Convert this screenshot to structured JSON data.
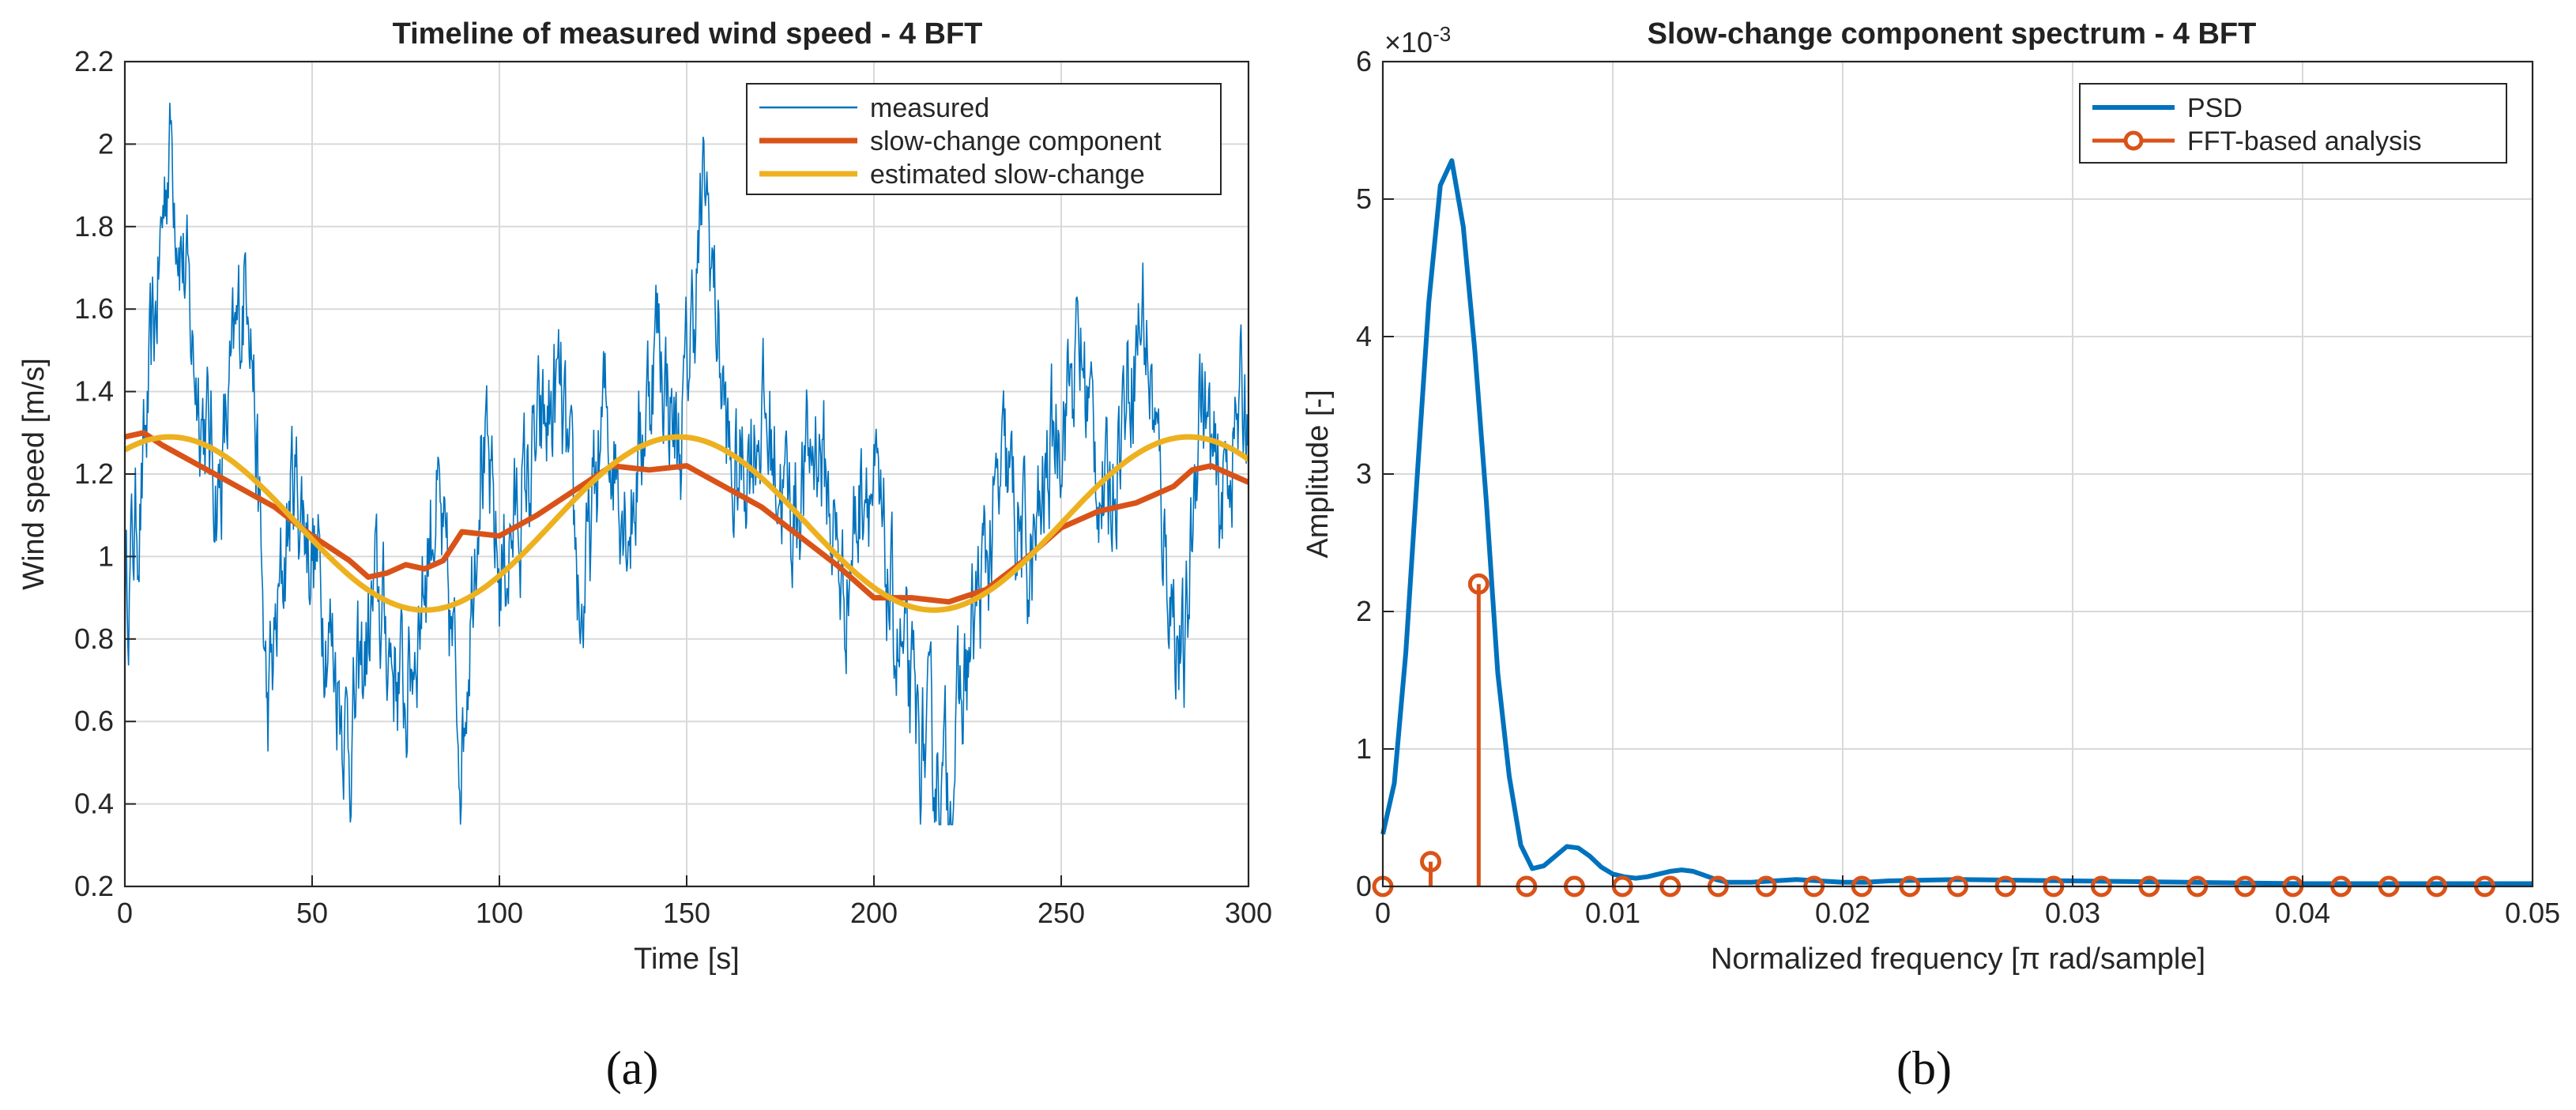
{
  "chart_data": [
    {
      "type": "line",
      "title": "Timeline of measured wind speed - 4 BFT",
      "xlabel": "Time [s]",
      "ylabel": "Wind speed [m/s]",
      "xlim": [
        0,
        300
      ],
      "ylim": [
        0.2,
        2.2
      ],
      "xticks": [
        0,
        50,
        100,
        150,
        200,
        250,
        300
      ],
      "xtick_labels": [
        "0",
        "50",
        "100",
        "150",
        "200",
        "250",
        "300"
      ],
      "yticks": [
        0.2,
        0.4,
        0.6,
        0.8,
        1,
        1.2,
        1.4,
        1.6,
        1.8,
        2,
        2.2
      ],
      "ytick_labels": [
        "0.2",
        "0.4",
        "0.6",
        "0.8",
        "1",
        "1.2",
        "1.4",
        "1.6",
        "1.8",
        "2",
        "2.2"
      ],
      "grid": true,
      "legend_position": "top-right",
      "panel_label": "(a)",
      "series": [
        {
          "name": "measured",
          "color": "#0072BD",
          "x": [
            0,
            5,
            12,
            18,
            25,
            33,
            38,
            45,
            52,
            60,
            67,
            75,
            83,
            90,
            95,
            100,
            108,
            116,
            122,
            128,
            135,
            142,
            148,
            155,
            162,
            170,
            178,
            185,
            192,
            198,
            205,
            212,
            220,
            228,
            235,
            242,
            248,
            255,
            262,
            268,
            272,
            278,
            283,
            287,
            292,
            296,
            300
          ],
          "y": [
            0.9,
            1.2,
            2.05,
            1.5,
            1.15,
            1.75,
            0.6,
            1.2,
            0.95,
            0.55,
            0.9,
            0.65,
            1.15,
            0.55,
            1.3,
            0.95,
            1.2,
            1.4,
            0.85,
            1.35,
            1.1,
            1.55,
            1.25,
            1.9,
            1.15,
            1.35,
            1.1,
            1.3,
            0.9,
            1.25,
            0.85,
            0.55,
            0.45,
            0.9,
            1.2,
            0.95,
            1.3,
            1.5,
            1.1,
            1.45,
            1.6,
            1.0,
            0.7,
            1.45,
            1.1,
            1.3,
            1.4
          ]
        },
        {
          "name": "slow-change component",
          "color": "#D95319",
          "x": [
            0,
            5,
            10,
            20,
            30,
            40,
            50,
            60,
            65,
            70,
            75,
            80,
            85,
            90,
            100,
            110,
            120,
            130,
            140,
            150,
            160,
            170,
            180,
            190,
            200,
            210,
            220,
            230,
            240,
            250,
            260,
            270,
            280,
            285,
            290,
            295,
            300
          ],
          "y": [
            1.29,
            1.3,
            1.27,
            1.22,
            1.17,
            1.12,
            1.05,
            0.99,
            0.95,
            0.96,
            0.98,
            0.97,
            0.99,
            1.06,
            1.05,
            1.1,
            1.16,
            1.22,
            1.21,
            1.22,
            1.17,
            1.12,
            1.05,
            0.98,
            0.9,
            0.9,
            0.89,
            0.92,
            0.99,
            1.07,
            1.11,
            1.13,
            1.17,
            1.21,
            1.22,
            1.2,
            1.18
          ]
        },
        {
          "name": "estimated slow-change",
          "color": "#EDB120",
          "amplitude": 0.21,
          "mean": 1.08,
          "period": 136,
          "x_peak": 12,
          "color_note": "sinusoid evaluated on xlim"
        }
      ]
    },
    {
      "type": "line",
      "title": "Slow-change component spectrum - 4 BFT",
      "xlabel": "Normalized frequency [π rad/sample]",
      "ylabel": "Amplitude [-]",
      "y_multiplier": "×10⁻³",
      "y_multiplier_base": "×10",
      "y_multiplier_exp": "-3",
      "xlim": [
        0,
        0.05
      ],
      "ylim": [
        0,
        6
      ],
      "xticks": [
        0,
        0.01,
        0.02,
        0.03,
        0.04,
        0.05
      ],
      "xtick_labels": [
        "0",
        "0.01",
        "0.02",
        "0.03",
        "0.04",
        "0.05"
      ],
      "yticks": [
        0,
        1,
        2,
        3,
        4,
        5,
        6
      ],
      "ytick_labels": [
        "0",
        "1",
        "2",
        "3",
        "4",
        "5",
        "6"
      ],
      "grid": true,
      "legend_position": "top-right",
      "panel_label": "(b)",
      "series": [
        {
          "name": "PSD",
          "color": "#0072BD",
          "x": [
            0,
            0.0005,
            0.001,
            0.0015,
            0.002,
            0.0025,
            0.003,
            0.0035,
            0.004,
            0.0045,
            0.005,
            0.0055,
            0.006,
            0.0065,
            0.007,
            0.0075,
            0.008,
            0.0085,
            0.009,
            0.0095,
            0.01,
            0.0105,
            0.011,
            0.0115,
            0.012,
            0.0125,
            0.013,
            0.0135,
            0.014,
            0.0145,
            0.015,
            0.016,
            0.017,
            0.018,
            0.019,
            0.02,
            0.021,
            0.022,
            0.025,
            0.03,
            0.035,
            0.04,
            0.045,
            0.05
          ],
          "y": [
            0.38,
            0.75,
            1.7,
            3.0,
            4.25,
            5.1,
            5.28,
            4.8,
            3.9,
            2.8,
            1.55,
            0.8,
            0.3,
            0.13,
            0.15,
            0.22,
            0.29,
            0.28,
            0.22,
            0.14,
            0.09,
            0.07,
            0.06,
            0.07,
            0.09,
            0.11,
            0.12,
            0.11,
            0.08,
            0.05,
            0.03,
            0.03,
            0.04,
            0.05,
            0.04,
            0.03,
            0.03,
            0.04,
            0.05,
            0.04,
            0.03,
            0.02,
            0.02,
            0.02
          ],
          "x_from_index_note": "PSD curve x values are distributed over 0-0.05"
        },
        {
          "name": "FFT-based analysis",
          "color": "#D95319",
          "style": "stem",
          "x": [
            0,
            0.00208,
            0.00417,
            0.00625,
            0.00833,
            0.01042,
            0.0125,
            0.01458,
            0.01667,
            0.01875,
            0.02083,
            0.02292,
            0.025,
            0.02708,
            0.02917,
            0.03125,
            0.03333,
            0.03542,
            0.0375,
            0.03958,
            0.04167,
            0.04375,
            0.04583,
            0.04792
          ],
          "y": [
            0,
            0.18,
            2.2,
            0,
            0,
            0,
            0,
            0,
            0,
            0,
            0,
            0,
            0,
            0,
            0,
            0,
            0,
            0,
            0,
            0,
            0,
            0,
            0,
            0
          ]
        }
      ]
    }
  ]
}
